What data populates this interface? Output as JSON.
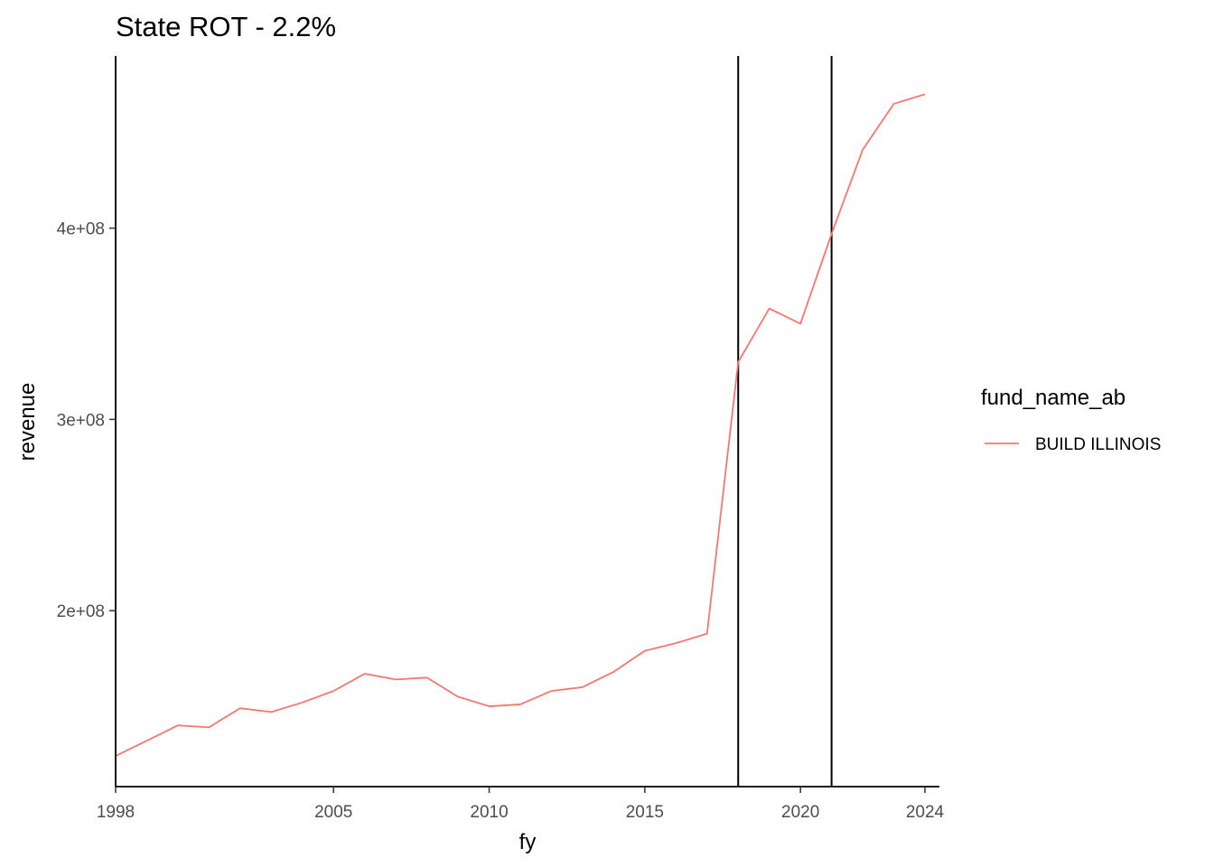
{
  "chart_data": {
    "type": "line",
    "title": "State ROT - 2.2%",
    "xlabel": "fy",
    "ylabel": "revenue",
    "xlim": [
      1998,
      2024
    ],
    "ylim": [
      108000000,
      490000000
    ],
    "x_ticks": [
      1998,
      2005,
      2010,
      2015,
      2020,
      2024
    ],
    "y_ticks": [
      200000000,
      300000000,
      400000000
    ],
    "y_tick_labels": [
      "2e+08",
      "3e+08",
      "4e+08"
    ],
    "vlines": [
      2018,
      2021
    ],
    "grid": false,
    "legend": {
      "title": "fund_name_ab",
      "position": "right"
    },
    "series": [
      {
        "name": "BUILD ILLINOIS",
        "color": "#F8766D",
        "x": [
          1998,
          1999,
          2000,
          2001,
          2002,
          2003,
          2004,
          2005,
          2006,
          2007,
          2008,
          2009,
          2010,
          2011,
          2012,
          2013,
          2014,
          2015,
          2016,
          2017,
          2018,
          2019,
          2020,
          2021,
          2022,
          2023,
          2024
        ],
        "values": [
          124000000,
          132000000,
          140000000,
          139000000,
          149000000,
          147000000,
          152000000,
          158000000,
          167000000,
          164000000,
          165000000,
          155000000,
          150000000,
          151000000,
          158000000,
          160000000,
          168000000,
          179000000,
          183000000,
          188000000,
          330000000,
          358000000,
          350000000,
          397000000,
          441000000,
          465000000,
          470000000
        ]
      }
    ]
  }
}
